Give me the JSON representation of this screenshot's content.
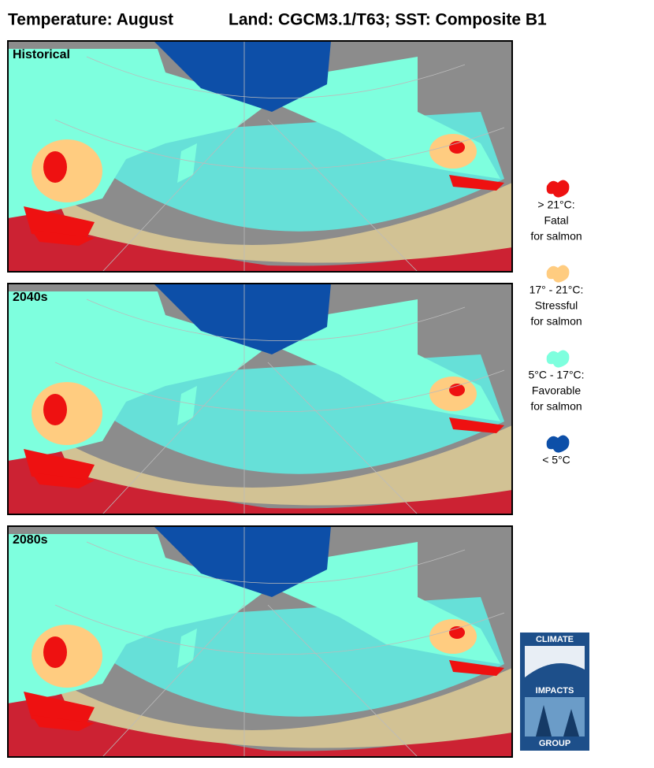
{
  "header": {
    "title": "Temperature: August",
    "subtitle": "Land: CGCM3.1/T63; SST: Composite B1"
  },
  "panels": [
    {
      "label": "Historical"
    },
    {
      "label": "2040s"
    },
    {
      "label": "2080s"
    }
  ],
  "legend": [
    {
      "color": "#ee1111",
      "lines": [
        "> 21°C:",
        "Fatal",
        "for salmon"
      ]
    },
    {
      "color": "#ffcc80",
      "lines": [
        "17° - 21°C:",
        "Stressful",
        "for salmon"
      ]
    },
    {
      "color": "#7effde",
      "lines": [
        "5°C - 17°C:",
        "Favorable",
        "for salmon"
      ]
    },
    {
      "color": "#0d4fa8",
      "lines": [
        "< 5°C"
      ]
    }
  ],
  "logo": {
    "top": "CLIMATE",
    "middle": "IMPACTS",
    "bottom": "GROUP"
  }
}
